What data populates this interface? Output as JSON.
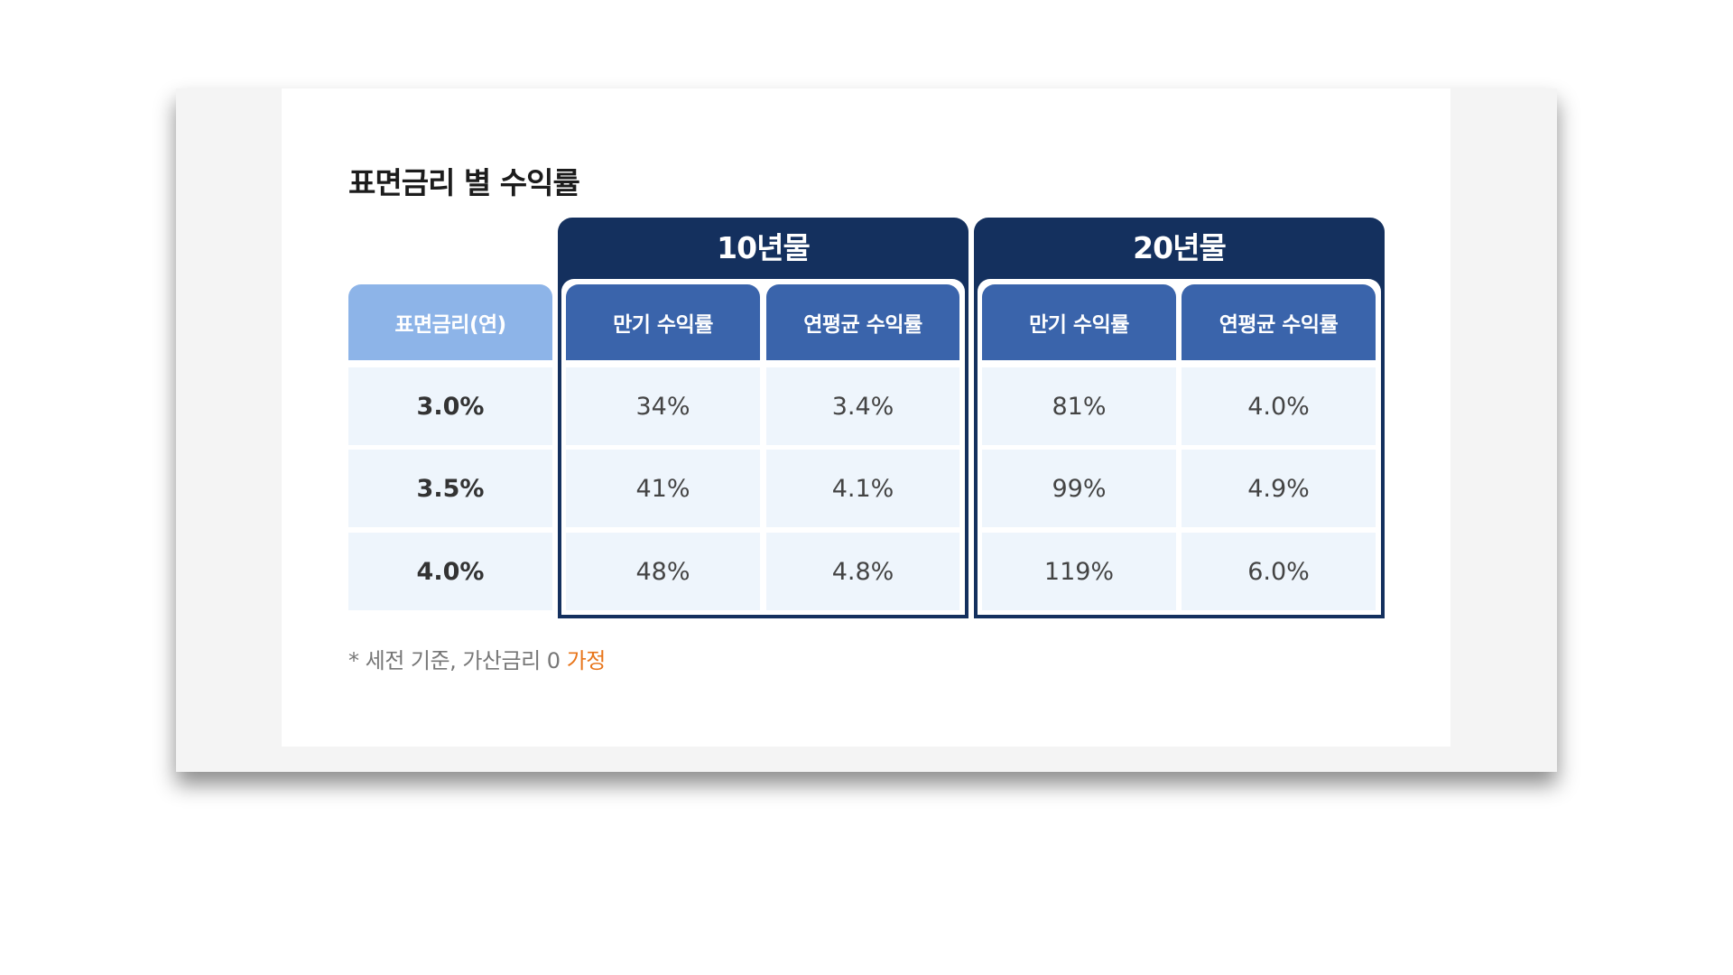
{
  "title": "표면금리 별 수익률",
  "table": {
    "groups": [
      "10년물",
      "20년물"
    ],
    "columns": [
      "표면금리(연)",
      "만기 수익률",
      "연평균 수익률",
      "만기 수익률",
      "연평균 수익률"
    ],
    "rows": [
      [
        "3.0%",
        "34%",
        "3.4%",
        "81%",
        "4.0%"
      ],
      [
        "3.5%",
        "41%",
        "4.1%",
        "99%",
        "4.9%"
      ],
      [
        "4.0%",
        "48%",
        "4.8%",
        "119%",
        "6.0%"
      ]
    ]
  },
  "footnote": {
    "text": "* 세전 기준, 가산금리 0",
    "highlight": "가정"
  }
}
